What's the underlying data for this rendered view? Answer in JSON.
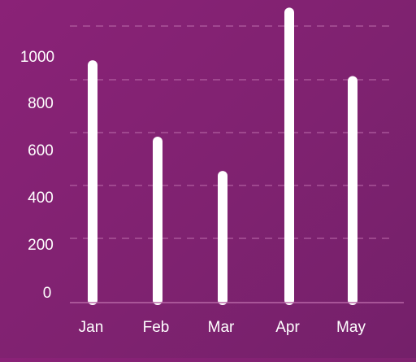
{
  "chart_data": {
    "type": "bar",
    "categories": [
      "Jan",
      "Feb",
      "Mar",
      "Apr",
      "May"
    ],
    "values": [
      920,
      630,
      500,
      1120,
      860
    ],
    "title": "",
    "xlabel": "",
    "ylabel": "",
    "y_ticks": [
      0,
      200,
      400,
      600,
      800,
      1000
    ],
    "y_tick_labels": [
      "0",
      "200",
      "400",
      "600",
      "800",
      "1000"
    ],
    "ylim": [
      0,
      1050
    ],
    "grid": true,
    "legend": "none",
    "colors": {
      "bar": "#ffffff",
      "grid": "#b766a6",
      "axis": "#b766a6",
      "text": "#ffffff"
    }
  }
}
